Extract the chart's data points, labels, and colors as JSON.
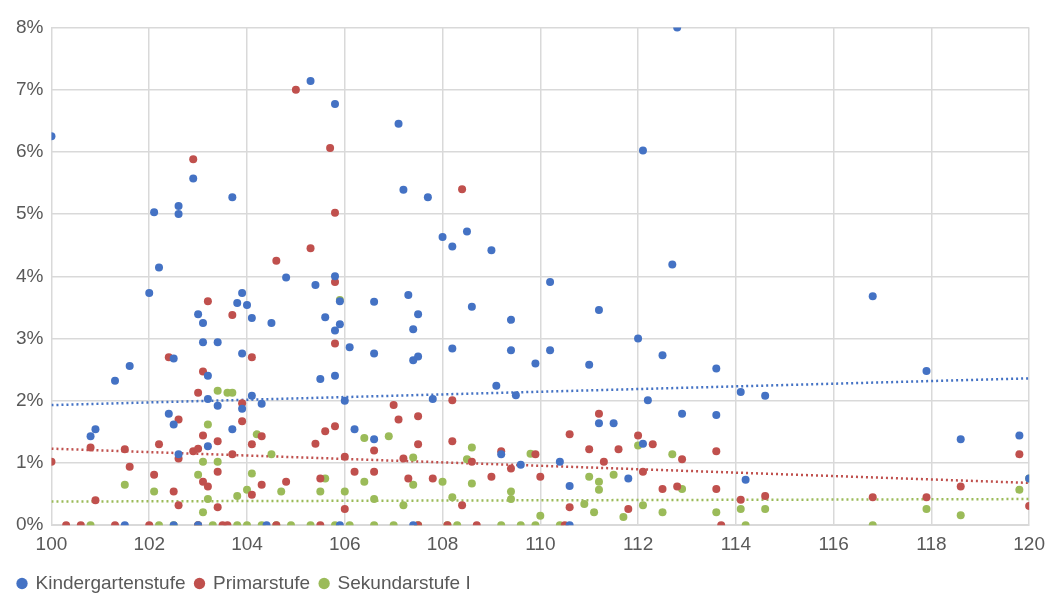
{
  "chart_data": {
    "type": "scatter",
    "xlim": [
      100,
      120
    ],
    "xticks": [
      100,
      102,
      104,
      106,
      108,
      110,
      112,
      114,
      116,
      118,
      120
    ],
    "ylim": [
      0,
      8
    ],
    "yticks": [
      {
        "value": 0,
        "label": "0%"
      },
      {
        "value": 1,
        "label": "1%"
      },
      {
        "value": 2,
        "label": "2%"
      },
      {
        "value": 3,
        "label": "3%"
      },
      {
        "value": 4,
        "label": "4%"
      },
      {
        "value": 5,
        "label": "5%"
      },
      {
        "value": 6,
        "label": "6%"
      },
      {
        "value": 7,
        "label": "7%"
      },
      {
        "value": 8,
        "label": "8%"
      }
    ],
    "grid": true,
    "legend": "bottom left",
    "marker": "circle",
    "series": [
      {
        "name": "Kindergartenstufe",
        "color": "#4472c4",
        "x": [
          100,
          100.8,
          100.9,
          101.3,
          101.6,
          102,
          102.1,
          102.2,
          101.5,
          102.4,
          102.5,
          102.5,
          102.6,
          102.6,
          102.6,
          102.9,
          103,
          103.1,
          103.1,
          103.2,
          103.2,
          103.4,
          103.4,
          103.2,
          103.7,
          103.7,
          103.8,
          103.9,
          103.9,
          103.9,
          104,
          104.1,
          104.1,
          104.3,
          104.5,
          104.8,
          105.3,
          105.4,
          105.5,
          105.6,
          105.8,
          105.8,
          105.8,
          105.8,
          105.9,
          105.9,
          106,
          106.1,
          106.2,
          106.6,
          106.6,
          106.6,
          107.1,
          107.2,
          107.3,
          107.4,
          107.4,
          107.5,
          107.5,
          107.7,
          107.8,
          108,
          108.2,
          108.2,
          108.5,
          108.6,
          109,
          109.1,
          109.2,
          109.4,
          109.4,
          109.5,
          109.6,
          109.9,
          110.2,
          110.2,
          110.4,
          110.6,
          110.6,
          111,
          111.2,
          111.2,
          111.5,
          111.8,
          112,
          112.1,
          112.1,
          112.2,
          112.5,
          112.7,
          112.8,
          112.9,
          113.6,
          113.6,
          114.1,
          114.2,
          114.6,
          116.8,
          117.9,
          118.6,
          119.8,
          120,
          102.5,
          103,
          104.4,
          105.9,
          107.4
        ],
        "values": [
          6.25,
          1.43,
          1.54,
          2.32,
          2.56,
          3.73,
          5.03,
          4.14,
          0,
          1.79,
          1.62,
          2.68,
          1.14,
          5.13,
          5,
          5.57,
          3.39,
          3.25,
          2.94,
          2.4,
          2.03,
          2.94,
          1.92,
          1.27,
          5.27,
          1.54,
          3.57,
          3.73,
          2.76,
          1.87,
          3.54,
          3.33,
          2.08,
          1.95,
          3.25,
          3.98,
          7.14,
          3.86,
          2.35,
          3.34,
          6.77,
          4,
          3.13,
          2.4,
          3.23,
          3.6,
          2,
          2.86,
          1.54,
          1.38,
          2.76,
          3.59,
          6.45,
          5.39,
          3.7,
          3.15,
          2.65,
          3.39,
          2.71,
          5.27,
          2.03,
          4.63,
          4.48,
          2.84,
          4.72,
          3.51,
          4.42,
          2.24,
          1.14,
          3.3,
          2.81,
          2.09,
          0.97,
          2.6,
          3.91,
          2.81,
          1.02,
          0.63,
          0,
          2.58,
          3.46,
          1.64,
          1.64,
          0.75,
          3,
          6.02,
          1.31,
          2.01,
          2.73,
          4.19,
          8,
          1.79,
          2.52,
          1.77,
          2.14,
          0.73,
          2.08,
          3.68,
          2.48,
          1.38,
          1.44,
          0.75,
          0,
          0,
          0,
          0,
          0
        ]
      },
      {
        "name": "Primarstufe",
        "color": "#c0504d",
        "x": [
          100,
          100.3,
          100.8,
          100.9,
          100.6,
          101.3,
          101.5,
          101.6,
          102.1,
          102.2,
          102.4,
          102.5,
          102.6,
          102.6,
          102.6,
          102.9,
          102.9,
          103,
          103,
          103.1,
          103.1,
          103.1,
          103.2,
          103.2,
          103.4,
          103.4,
          103.4,
          103.5,
          103.7,
          103.7,
          103.9,
          103.9,
          104.1,
          104.1,
          104.1,
          104.3,
          104.3,
          104.6,
          104.8,
          105,
          105.3,
          105.4,
          105.5,
          105.6,
          105.7,
          105.8,
          105.8,
          105.8,
          105.8,
          106,
          106,
          106.2,
          106.6,
          106.6,
          107,
          107.1,
          107.2,
          107.3,
          107.5,
          107.5,
          107.8,
          108.2,
          108.2,
          108.4,
          108.6,
          108.4,
          109,
          109.2,
          109.4,
          109.9,
          110,
          110.6,
          110.6,
          111,
          111.2,
          111.3,
          111.6,
          111.8,
          112,
          112.1,
          112.3,
          112.5,
          112.8,
          112.9,
          113.6,
          113.6,
          114.1,
          114.6,
          116.8,
          117.9,
          118.6,
          119.8,
          120,
          102,
          103,
          103.6,
          104.6,
          105.5,
          107.5,
          108.1,
          108.7,
          110.5,
          113.7
        ],
        "values": [
          1.02,
          0,
          1.25,
          0.4,
          0,
          0,
          1.22,
          0.94,
          0.81,
          1.3,
          2.7,
          0.54,
          1.07,
          1.7,
          0.32,
          5.88,
          1.19,
          2.13,
          1.23,
          2.47,
          1.44,
          0.7,
          3.6,
          0.62,
          1.35,
          0.86,
          0.29,
          0,
          3.38,
          1.14,
          1.96,
          1.67,
          2.7,
          1.3,
          0.49,
          0.65,
          1.43,
          4.25,
          0.7,
          7,
          4.45,
          1.31,
          0.75,
          1.51,
          6.06,
          5.02,
          3.91,
          2.92,
          1.59,
          1.1,
          0.26,
          0.86,
          1.2,
          0.86,
          1.93,
          1.7,
          1.07,
          0.75,
          1.75,
          1.3,
          0.75,
          2.01,
          1.35,
          5.4,
          1.02,
          0.32,
          0.78,
          1.19,
          0.91,
          1.14,
          0.78,
          1.46,
          0.29,
          1.22,
          1.79,
          1.02,
          1.22,
          0.26,
          1.44,
          0.86,
          1.3,
          0.58,
          0.62,
          1.06,
          1.19,
          0.58,
          0.41,
          0.47,
          0.45,
          0.45,
          0.62,
          1.14,
          0.31,
          0,
          0,
          0,
          0,
          0,
          0,
          0,
          0,
          0,
          0
        ]
      },
      {
        "name": "Sekundarstufe I",
        "color": "#9bbb59",
        "x": [
          100.8,
          101.5,
          102.1,
          102.2,
          102.5,
          103,
          103.1,
          103.2,
          103.2,
          103.1,
          103.4,
          103.6,
          103.7,
          103.4,
          103.8,
          104,
          104.1,
          104.2,
          104.5,
          104.7,
          105.5,
          105.6,
          105.9,
          106,
          106.4,
          106.4,
          106.6,
          106.9,
          107.2,
          107.4,
          107.4,
          108,
          108.2,
          108.5,
          108.6,
          108.6,
          109.4,
          109.4,
          109.8,
          110,
          109.9,
          110.9,
          111,
          111.1,
          111.2,
          111.2,
          111.5,
          111.7,
          112,
          112.1,
          112.5,
          112.7,
          112.9,
          113.6,
          114.1,
          114.2,
          114.6,
          116.8,
          117.9,
          118.6,
          119.8,
          120,
          103,
          103.3,
          103.8,
          104,
          104.3,
          104.6,
          104.9,
          105.3,
          105.8,
          106.1,
          106.6,
          107,
          107.5,
          108.1,
          108.3,
          109.2,
          109.6,
          110.4
        ],
        "values": [
          0,
          0.65,
          0.54,
          0,
          0,
          0.81,
          1.02,
          1.62,
          0.42,
          0.21,
          2.16,
          2.13,
          2.13,
          1.02,
          0.47,
          0.57,
          0.83,
          1.46,
          1.14,
          0.54,
          0.54,
          0.75,
          3.62,
          0.54,
          1.4,
          0.7,
          0.42,
          1.43,
          0.32,
          1.09,
          0.65,
          0.7,
          0.45,
          1.06,
          1.25,
          0.67,
          0.54,
          0.42,
          1.15,
          0.15,
          0,
          0.34,
          0.78,
          0.21,
          0.57,
          0.7,
          0.81,
          0.13,
          1.28,
          0.32,
          0.21,
          1.14,
          0.58,
          0.21,
          0.26,
          0,
          0.26,
          0,
          0.26,
          0.16,
          0.57,
          0.75,
          0,
          0,
          0,
          0,
          0,
          0,
          0,
          0,
          0,
          0,
          0,
          0,
          0,
          0,
          0,
          0,
          0,
          0
        ]
      },
      {
        "type": "line",
        "color": "#4472c4",
        "x": [
          100,
          120
        ],
        "values": [
          1.93,
          2.36
        ],
        "line_style": "dotted",
        "marker": "none"
      },
      {
        "type": "line",
        "color": "#c0504d",
        "x": [
          100,
          120
        ],
        "values": [
          1.23,
          0.68
        ],
        "line_style": "dotted",
        "marker": "none"
      },
      {
        "type": "line",
        "color": "#9bbb59",
        "x": [
          100,
          120
        ],
        "values": [
          0.38,
          0.42
        ],
        "line_style": "dotted",
        "marker": "none"
      }
    ]
  }
}
